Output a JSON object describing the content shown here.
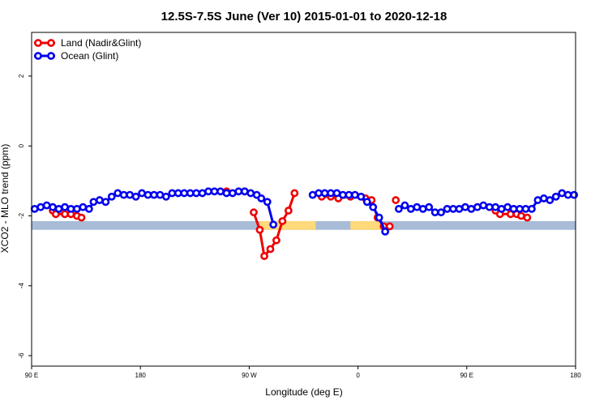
{
  "chart_data": {
    "type": "line",
    "title": "12.5S-7.5S June (Ver 10)   2015-01-01 to 2020-12-18",
    "xlabel": "Longitude (deg E)",
    "ylabel": "XCO2 - MLO trend (ppm)",
    "xlim": [
      90,
      450
    ],
    "ylim": [
      -6.3,
      3.25
    ],
    "x_ticks": [
      {
        "value": 90,
        "label": "90 E"
      },
      {
        "value": 162,
        "label": "180"
      },
      {
        "value": 234,
        "label": "90 W"
      },
      {
        "value": 306,
        "label": "0"
      },
      {
        "value": 378,
        "label": "90 E"
      },
      {
        "value": 450,
        "label": "180"
      }
    ],
    "y_ticks": [
      {
        "value": 2,
        "label": "2"
      },
      {
        "value": 0,
        "label": "0"
      },
      {
        "value": -2,
        "label": "-2"
      },
      {
        "value": -4,
        "label": "-4"
      },
      {
        "value": -6,
        "label": "-6"
      }
    ],
    "grid": false,
    "legend_position": "top-left",
    "land_band": {
      "y_top": -2.15,
      "y_bottom": -2.4,
      "ocean_color": "#a8bcd8",
      "land_color": "#ffd97a",
      "land_segments": [
        [
          241,
          278
        ],
        [
          301,
          318
        ],
        [
          312,
          322
        ]
      ]
    },
    "series": [
      {
        "name": "Land (Nadir&Glint)",
        "color": "#ee0000",
        "segments": [
          [
            [
              104,
              -1.85
            ],
            [
              106,
              -1.95
            ],
            [
              112,
              -1.95
            ],
            [
              116,
              -1.95
            ],
            [
              120,
              -2.0
            ],
            [
              123,
              -2.05
            ]
          ],
          [
            [
              219,
              -1.3
            ],
            [
              231,
              -1.3
            ]
          ],
          [
            [
              237,
              -1.9
            ],
            [
              241,
              -2.4
            ],
            [
              244,
              -3.15
            ],
            [
              248,
              -2.95
            ],
            [
              252,
              -2.7
            ],
            [
              256,
              -2.15
            ],
            [
              260,
              -1.85
            ],
            [
              264,
              -1.35
            ]
          ],
          [
            [
              282,
              -1.45
            ],
            [
              288,
              -1.45
            ],
            [
              293,
              -1.5
            ],
            [
              301,
              -1.45
            ],
            [
              311,
              -1.5
            ],
            [
              315,
              -1.55
            ],
            [
              319,
              -2.05
            ],
            [
              323,
              -2.3
            ],
            [
              327,
              -2.3
            ]
          ],
          [
            [
              331,
              -1.55
            ]
          ],
          [
            [
              397,
              -1.85
            ],
            [
              400,
              -1.95
            ],
            [
              407,
              -1.95
            ],
            [
              411,
              -1.95
            ],
            [
              414,
              -2.0
            ],
            [
              418,
              -2.05
            ]
          ]
        ]
      },
      {
        "name": "Ocean (Glint)",
        "color": "#0000ee",
        "segments": [
          [
            [
              92,
              -1.8
            ],
            [
              96,
              -1.75
            ],
            [
              100,
              -1.7
            ],
            [
              104,
              -1.75
            ],
            [
              108,
              -1.8
            ],
            [
              112,
              -1.75
            ],
            [
              116,
              -1.8
            ],
            [
              120,
              -1.8
            ],
            [
              124,
              -1.75
            ],
            [
              128,
              -1.8
            ],
            [
              131,
              -1.6
            ],
            [
              135,
              -1.55
            ],
            [
              139,
              -1.6
            ],
            [
              143,
              -1.45
            ],
            [
              147,
              -1.35
            ],
            [
              151,
              -1.4
            ],
            [
              155,
              -1.4
            ],
            [
              159,
              -1.45
            ],
            [
              163,
              -1.35
            ],
            [
              167,
              -1.4
            ],
            [
              171,
              -1.4
            ],
            [
              175,
              -1.4
            ],
            [
              179,
              -1.45
            ],
            [
              183,
              -1.35
            ],
            [
              187,
              -1.35
            ],
            [
              191,
              -1.35
            ],
            [
              195,
              -1.35
            ],
            [
              199,
              -1.35
            ],
            [
              203,
              -1.35
            ],
            [
              207,
              -1.3
            ],
            [
              211,
              -1.3
            ],
            [
              215,
              -1.3
            ],
            [
              219,
              -1.35
            ],
            [
              223,
              -1.35
            ],
            [
              227,
              -1.3
            ],
            [
              231,
              -1.3
            ],
            [
              235,
              -1.35
            ],
            [
              239,
              -1.4
            ],
            [
              242,
              -1.5
            ],
            [
              246,
              -1.6
            ],
            [
              250,
              -2.25
            ]
          ],
          [
            [
              276,
              -1.4
            ],
            [
              280,
              -1.35
            ],
            [
              284,
              -1.35
            ],
            [
              288,
              -1.35
            ],
            [
              292,
              -1.35
            ],
            [
              296,
              -1.4
            ],
            [
              300,
              -1.4
            ],
            [
              304,
              -1.4
            ],
            [
              308,
              -1.45
            ],
            [
              312,
              -1.6
            ],
            [
              316,
              -1.75
            ],
            [
              320,
              -2.05
            ],
            [
              324,
              -2.45
            ]
          ],
          [
            [
              333,
              -1.8
            ],
            [
              337,
              -1.7
            ],
            [
              341,
              -1.8
            ],
            [
              345,
              -1.75
            ],
            [
              349,
              -1.8
            ],
            [
              353,
              -1.75
            ],
            [
              357,
              -1.9
            ],
            [
              361,
              -1.9
            ],
            [
              365,
              -1.8
            ],
            [
              369,
              -1.8
            ],
            [
              373,
              -1.8
            ],
            [
              377,
              -1.75
            ],
            [
              381,
              -1.8
            ],
            [
              385,
              -1.75
            ],
            [
              389,
              -1.7
            ],
            [
              393,
              -1.75
            ],
            [
              397,
              -1.75
            ],
            [
              401,
              -1.8
            ],
            [
              405,
              -1.75
            ],
            [
              409,
              -1.8
            ],
            [
              413,
              -1.8
            ],
            [
              417,
              -1.8
            ],
            [
              421,
              -1.8
            ],
            [
              425,
              -1.55
            ],
            [
              429,
              -1.5
            ],
            [
              433,
              -1.55
            ],
            [
              437,
              -1.45
            ],
            [
              441,
              -1.35
            ],
            [
              445,
              -1.4
            ],
            [
              449,
              -1.4
            ]
          ]
        ]
      }
    ]
  }
}
